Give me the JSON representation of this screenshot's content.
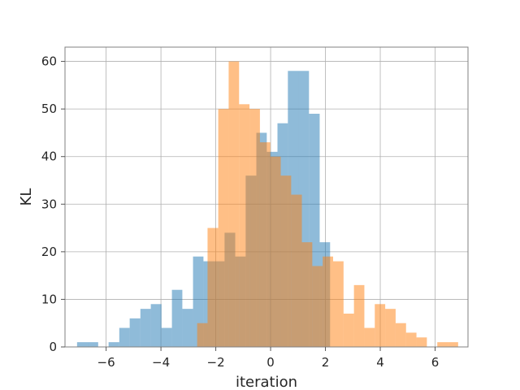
{
  "chart_data": {
    "type": "bar",
    "title": "",
    "xlabel": "iteration",
    "ylabel": "KL",
    "xlim": [
      -7.5,
      7.2
    ],
    "ylim": [
      0,
      63
    ],
    "xticks": [
      -6,
      -4,
      -2,
      0,
      2,
      4,
      6
    ],
    "xtick_labels": [
      "−6",
      "−4",
      "−2",
      "0",
      "2",
      "4",
      "6"
    ],
    "yticks": [
      0,
      10,
      20,
      30,
      40,
      50,
      60
    ],
    "ytick_labels": [
      "0",
      "10",
      "20",
      "30",
      "40",
      "50",
      "60"
    ],
    "grid": true,
    "legend": false,
    "series": [
      {
        "color": "#1f77b4",
        "opacity": 0.5,
        "bins": [
          {
            "x0": -7.06,
            "x1": -6.67,
            "value": 1
          },
          {
            "x0": -6.67,
            "x1": -6.29,
            "value": 1
          },
          {
            "x0": -6.29,
            "x1": -5.91,
            "value": 0
          },
          {
            "x0": -5.91,
            "x1": -5.52,
            "value": 1
          },
          {
            "x0": -5.52,
            "x1": -5.14,
            "value": 4
          },
          {
            "x0": -5.14,
            "x1": -4.75,
            "value": 6
          },
          {
            "x0": -4.75,
            "x1": -4.37,
            "value": 8
          },
          {
            "x0": -4.37,
            "x1": -3.98,
            "value": 9
          },
          {
            "x0": -3.98,
            "x1": -3.6,
            "value": 4
          },
          {
            "x0": -3.6,
            "x1": -3.22,
            "value": 12
          },
          {
            "x0": -3.22,
            "x1": -2.83,
            "value": 8
          },
          {
            "x0": -2.83,
            "x1": -2.45,
            "value": 19
          },
          {
            "x0": -2.45,
            "x1": -2.06,
            "value": 18
          },
          {
            "x0": -2.06,
            "x1": -1.68,
            "value": 18
          },
          {
            "x0": -1.68,
            "x1": -1.29,
            "value": 24
          },
          {
            "x0": -1.29,
            "x1": -0.91,
            "value": 19
          },
          {
            "x0": -0.91,
            "x1": -0.52,
            "value": 36
          },
          {
            "x0": -0.52,
            "x1": -0.14,
            "value": 45
          },
          {
            "x0": -0.14,
            "x1": 0.25,
            "value": 41
          },
          {
            "x0": 0.25,
            "x1": 0.63,
            "value": 47
          },
          {
            "x0": 0.63,
            "x1": 1.02,
            "value": 58
          },
          {
            "x0": 1.02,
            "x1": 1.4,
            "value": 58
          },
          {
            "x0": 1.4,
            "x1": 1.79,
            "value": 49
          },
          {
            "x0": 1.79,
            "x1": 2.17,
            "value": 22
          }
        ]
      },
      {
        "color": "#ff7f0e",
        "opacity": 0.5,
        "bins": [
          {
            "x0": -2.68,
            "x1": -2.3,
            "value": 5
          },
          {
            "x0": -2.3,
            "x1": -1.91,
            "value": 25
          },
          {
            "x0": -1.91,
            "x1": -1.53,
            "value": 50
          },
          {
            "x0": -1.53,
            "x1": -1.15,
            "value": 60
          },
          {
            "x0": -1.15,
            "x1": -0.77,
            "value": 51
          },
          {
            "x0": -0.77,
            "x1": -0.39,
            "value": 50
          },
          {
            "x0": -0.39,
            "x1": -0.01,
            "value": 43
          },
          {
            "x0": -0.01,
            "x1": 0.37,
            "value": 40
          },
          {
            "x0": 0.37,
            "x1": 0.75,
            "value": 36
          },
          {
            "x0": 0.75,
            "x1": 1.14,
            "value": 32
          },
          {
            "x0": 1.14,
            "x1": 1.52,
            "value": 22
          },
          {
            "x0": 1.52,
            "x1": 1.9,
            "value": 17
          },
          {
            "x0": 1.9,
            "x1": 2.28,
            "value": 19
          },
          {
            "x0": 2.28,
            "x1": 2.66,
            "value": 18
          },
          {
            "x0": 2.66,
            "x1": 3.04,
            "value": 7
          },
          {
            "x0": 3.04,
            "x1": 3.42,
            "value": 13
          },
          {
            "x0": 3.42,
            "x1": 3.8,
            "value": 4
          },
          {
            "x0": 3.8,
            "x1": 4.18,
            "value": 9
          },
          {
            "x0": 4.18,
            "x1": 4.56,
            "value": 8
          },
          {
            "x0": 4.56,
            "x1": 4.94,
            "value": 5
          },
          {
            "x0": 4.94,
            "x1": 5.32,
            "value": 3
          },
          {
            "x0": 5.32,
            "x1": 5.7,
            "value": 2
          },
          {
            "x0": 5.7,
            "x1": 6.08,
            "value": 0
          },
          {
            "x0": 6.08,
            "x1": 6.46,
            "value": 1
          },
          {
            "x0": 6.46,
            "x1": 6.84,
            "value": 1
          }
        ]
      }
    ]
  }
}
